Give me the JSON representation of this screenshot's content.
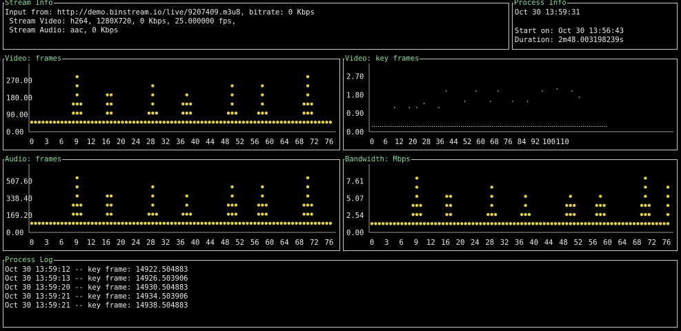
{
  "colors": {
    "accent": "#86d9a0",
    "point": "#e6d53a",
    "axis": "#9a9a9a",
    "text": "#e8e8e8",
    "border": "#c8c8c8"
  },
  "stream_info": {
    "title": "Stream Info",
    "input_line": "Input from: http://demo.binstream.io/live/9207409.m3u8, bitrate: 0 Kbps",
    "video_line": " Stream Video: h264, 1280X720, 0 Kbps, 25.000000 fps,",
    "audio_line": " Stream Audio: aac, 0 Kbps"
  },
  "process_info": {
    "title": "Process Info",
    "clock": "Oct 30 13:59:31",
    "start_on": "Start on: Oct 30 13:56:43",
    "duration": "Duration: 2m48.003198239s"
  },
  "process_log": {
    "title": "Process Log",
    "entries": [
      "Oct 30 13:59:12 -- key frame: 14922.504883",
      "Oct 30 13:59:13 -- key frame: 14926.503906",
      "Oct 30 13:59:20 -- key frame: 14930.504883",
      "Oct 30 13:59:21 -- key frame: 14934.503906",
      "Oct 30 13:59:21 -- key frame: 14938.504883"
    ]
  },
  "chart_data": [
    {
      "type": "scatter",
      "title": "Video: frames",
      "yticks": [
        "0.00",
        "90.00",
        "180.00",
        "270.00"
      ],
      "xticks": [
        "0",
        "3",
        "6",
        "9",
        "12",
        "16",
        "20",
        "24",
        "28",
        "32",
        "36",
        "40",
        "44",
        "48",
        "52",
        "56",
        "60",
        "64",
        "68",
        "72",
        "76"
      ],
      "ylim": [
        0,
        330
      ],
      "x": [
        0,
        1,
        2,
        3,
        4,
        5,
        6,
        7,
        8,
        9,
        10,
        11,
        12,
        13,
        14,
        15,
        16,
        17,
        18,
        19,
        20,
        21,
        22,
        23,
        24,
        25,
        26,
        27,
        28,
        29,
        30,
        31,
        32,
        33,
        34,
        35,
        36,
        37,
        38,
        39,
        40,
        41,
        42,
        43,
        44,
        45,
        46,
        47,
        48,
        49,
        50,
        51,
        52,
        53,
        54,
        55,
        56,
        57,
        58,
        59,
        60,
        61,
        62,
        63,
        64,
        65,
        66,
        67,
        68,
        69,
        70,
        71,
        72,
        73,
        74,
        75,
        76,
        77,
        78,
        79
      ],
      "y": [
        50,
        50,
        50,
        50,
        50,
        50,
        50,
        50,
        50,
        50,
        50,
        150,
        300,
        150,
        50,
        50,
        50,
        50,
        50,
        50,
        175,
        175,
        50,
        50,
        50,
        50,
        50,
        50,
        50,
        50,
        50,
        75,
        225,
        75,
        50,
        50,
        50,
        50,
        50,
        50,
        125,
        175,
        125,
        50,
        50,
        50,
        50,
        50,
        50,
        50,
        50,
        50,
        100,
        225,
        100,
        50,
        50,
        50,
        50,
        50,
        100,
        225,
        100,
        50,
        50,
        50,
        50,
        50,
        50,
        50,
        50,
        50,
        150,
        300,
        150,
        50,
        50,
        50,
        50,
        50
      ]
    },
    {
      "type": "scatter",
      "title": "Video: key frames",
      "yticks": [
        "0.00",
        "0.90",
        "1.80",
        "2.70"
      ],
      "xticks": [
        "0",
        "6",
        "12",
        "20",
        "28",
        "36",
        "44",
        "52",
        "60",
        "68",
        "76",
        "84",
        "92",
        "100",
        "110"
      ],
      "ylim": [
        0,
        3.05
      ],
      "xlim": [
        0,
        170
      ],
      "key_x": [
        12,
        20,
        24,
        28,
        36,
        40,
        50,
        56,
        64,
        68,
        76,
        84,
        92,
        100,
        108,
        112
      ],
      "key_y": [
        1.2,
        1.2,
        1.2,
        1.4,
        1.2,
        2.0,
        1.5,
        2.0,
        1.5,
        2.0,
        1.5,
        1.5,
        2.0,
        2.1,
        2.0,
        1.7
      ],
      "base_x_max": 120
    },
    {
      "type": "scatter",
      "title": "Audio: frames",
      "yticks": [
        "0.00",
        "169.20",
        "338.40",
        "507.60"
      ],
      "xticks": [
        "0",
        "3",
        "6",
        "9",
        "12",
        "16",
        "20",
        "24",
        "28",
        "32",
        "36",
        "40",
        "44",
        "48",
        "52",
        "56",
        "60",
        "64",
        "68",
        "72",
        "76"
      ],
      "ylim": [
        0,
        620
      ],
      "x": [
        0,
        1,
        2,
        3,
        4,
        5,
        6,
        7,
        8,
        9,
        10,
        11,
        12,
        13,
        14,
        15,
        16,
        17,
        18,
        19,
        20,
        21,
        22,
        23,
        24,
        25,
        26,
        27,
        28,
        29,
        30,
        31,
        32,
        33,
        34,
        35,
        36,
        37,
        38,
        39,
        40,
        41,
        42,
        43,
        44,
        45,
        46,
        47,
        48,
        49,
        50,
        51,
        52,
        53,
        54,
        55,
        56,
        57,
        58,
        59,
        60,
        61,
        62,
        63,
        64,
        65,
        66,
        67,
        68,
        69,
        70,
        71,
        72,
        73,
        74,
        75,
        76,
        77,
        78,
        79
      ],
      "y": [
        90,
        90,
        90,
        90,
        90,
        90,
        90,
        90,
        90,
        90,
        90,
        250,
        570,
        250,
        90,
        90,
        90,
        90,
        90,
        90,
        330,
        330,
        90,
        90,
        90,
        90,
        90,
        90,
        90,
        90,
        90,
        170,
        410,
        170,
        90,
        90,
        90,
        90,
        90,
        90,
        170,
        330,
        170,
        90,
        90,
        90,
        90,
        90,
        90,
        90,
        90,
        90,
        250,
        410,
        250,
        90,
        90,
        90,
        90,
        90,
        250,
        410,
        250,
        90,
        90,
        90,
        90,
        90,
        90,
        90,
        90,
        90,
        250,
        570,
        250,
        90,
        90,
        90,
        90,
        90
      ]
    },
    {
      "type": "scatter",
      "title": "Bandwidth: Mbps",
      "yticks": [
        "0.00",
        "2.54",
        "5.07",
        "7.61"
      ],
      "xticks": [
        "0",
        "3",
        "6",
        "9",
        "12",
        "16",
        "20",
        "24",
        "28",
        "32",
        "36",
        "40",
        "44",
        "48",
        "52",
        "56",
        "60",
        "64",
        "68",
        "72",
        "76"
      ],
      "ylim": [
        0,
        9.3
      ],
      "x": [
        0,
        1,
        2,
        3,
        4,
        5,
        6,
        7,
        8,
        9,
        10,
        11,
        12,
        13,
        14,
        15,
        16,
        17,
        18,
        19,
        20,
        21,
        22,
        23,
        24,
        25,
        26,
        27,
        28,
        29,
        30,
        31,
        32,
        33,
        34,
        35,
        36,
        37,
        38,
        39,
        40,
        41,
        42,
        43,
        44,
        45,
        46,
        47,
        48,
        49,
        50,
        51,
        52,
        53,
        54,
        55,
        56,
        57,
        58,
        59,
        60,
        61,
        62,
        63,
        64,
        65,
        66,
        67,
        68,
        69,
        70,
        71,
        72,
        73,
        74,
        75,
        76,
        77,
        78,
        79
      ],
      "y": [
        1.3,
        1.3,
        1.3,
        1.3,
        1.3,
        1.3,
        1.3,
        1.3,
        1.3,
        1.3,
        1.3,
        3.7,
        8.5,
        3.7,
        1.3,
        1.3,
        1.3,
        1.3,
        1.3,
        1.3,
        4.9,
        4.9,
        1.3,
        1.3,
        1.3,
        1.3,
        1.3,
        1.3,
        1.3,
        1.3,
        1.3,
        2.5,
        6.1,
        2.5,
        1.3,
        1.3,
        1.3,
        1.3,
        1.3,
        1.3,
        2.5,
        4.9,
        2.5,
        1.3,
        1.3,
        1.3,
        1.3,
        1.3,
        1.3,
        1.3,
        1.3,
        1.3,
        3.7,
        4.9,
        3.7,
        1.3,
        1.3,
        1.3,
        1.3,
        1.3,
        3.7,
        4.9,
        3.7,
        1.3,
        1.3,
        1.3,
        1.3,
        1.3,
        1.3,
        1.3,
        1.3,
        1.3,
        3.7,
        8.5,
        3.7,
        1.3,
        1.3,
        1.3,
        1.3,
        6.1
      ]
    }
  ]
}
